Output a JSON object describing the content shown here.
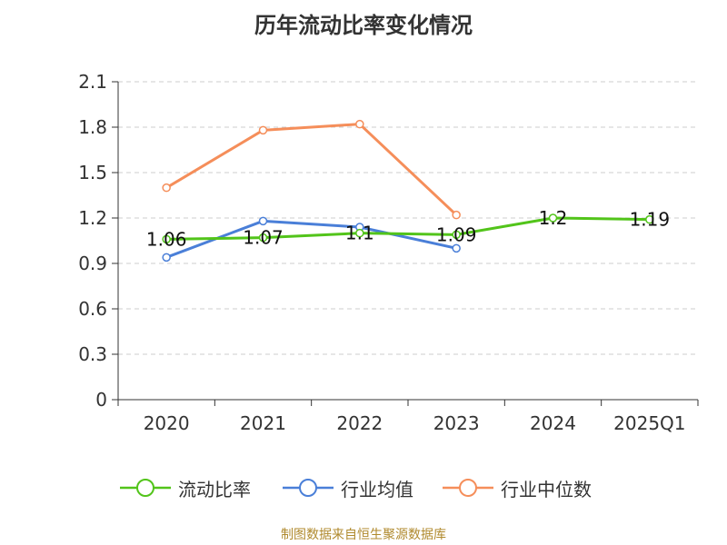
{
  "title": "历年流动比率变化情况",
  "source": "制图数据来自恒生聚源数据库",
  "colors": {
    "series1": "#52c41a",
    "series2": "#4a7fd8",
    "series3": "#f58e5a",
    "grid": "#cccccc",
    "axis": "#333333",
    "text": "#333333"
  },
  "chart_data": {
    "type": "line",
    "categories": [
      "2020",
      "2021",
      "2022",
      "2023",
      "2024",
      "2025Q1"
    ],
    "ylim": [
      0,
      2.1
    ],
    "yticks": [
      "0",
      "0.3",
      "0.6",
      "0.9",
      "1.2",
      "1.5",
      "1.8",
      "2.1"
    ],
    "grid": true,
    "legend_position": "bottom",
    "series": [
      {
        "name": "流动比率",
        "values": [
          1.06,
          1.07,
          1.1,
          1.09,
          1.2,
          1.19
        ],
        "labels": [
          "1.06",
          "1.07",
          "1.1",
          "1.09",
          "1.2",
          "1.19"
        ]
      },
      {
        "name": "行业均值",
        "values": [
          0.94,
          1.18,
          1.14,
          1.0,
          null,
          null
        ]
      },
      {
        "name": "行业中位数",
        "values": [
          1.4,
          1.78,
          1.82,
          1.22,
          null,
          null
        ]
      }
    ]
  }
}
